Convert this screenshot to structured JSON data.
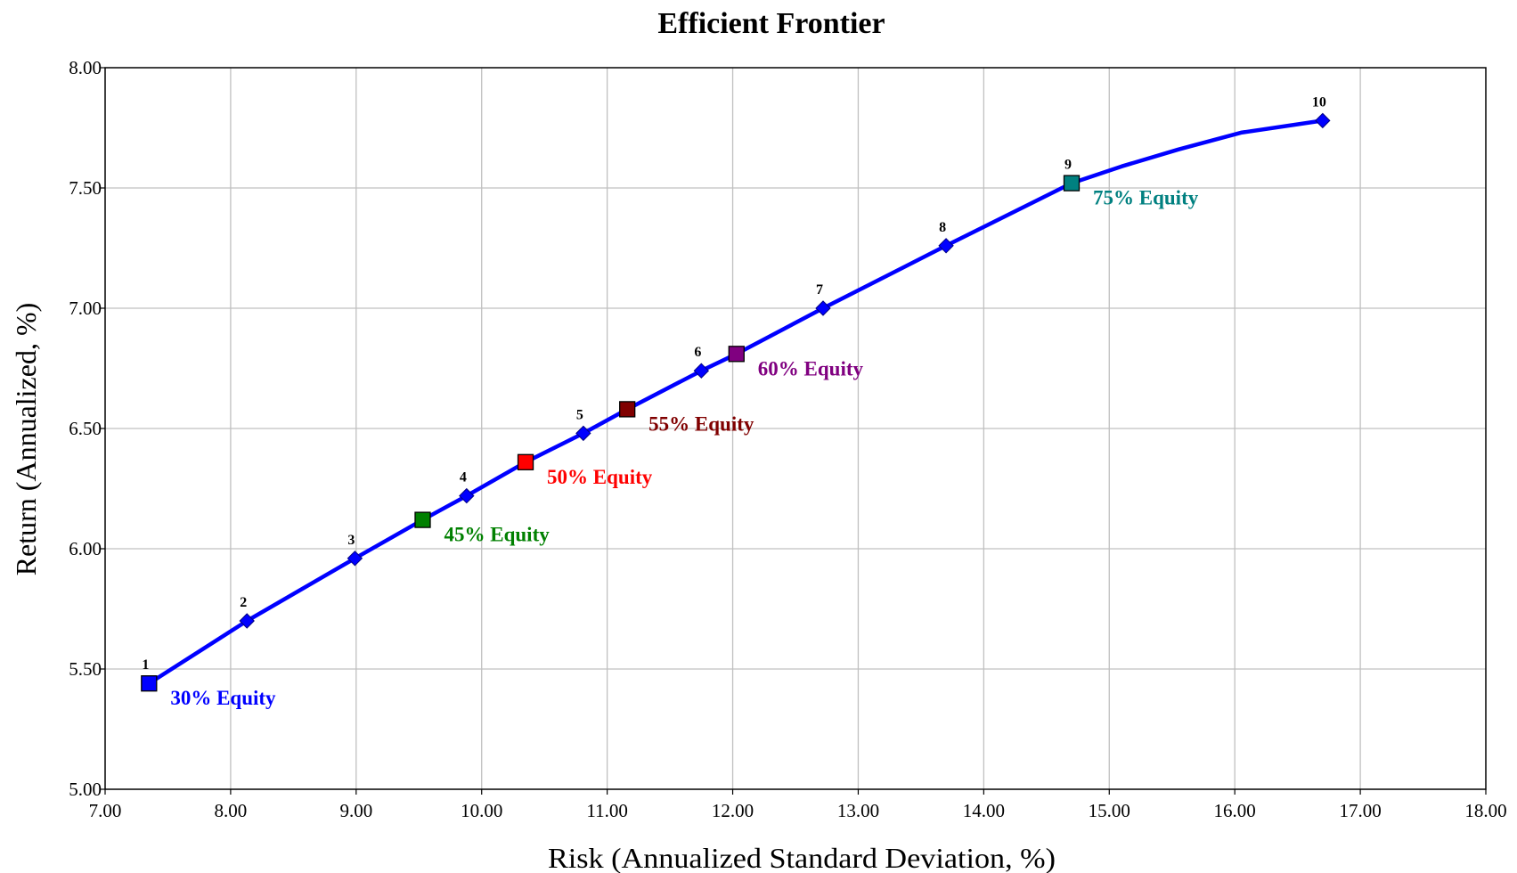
{
  "chart_data": {
    "type": "line",
    "title": "Efficient Frontier",
    "xlabel": "Risk (Annualized Standard Deviation, %)",
    "ylabel": "Return (Annualized, %)",
    "xlim": [
      7.0,
      18.0
    ],
    "ylim": [
      5.0,
      8.0
    ],
    "x_ticks": [
      "7.00",
      "8.00",
      "9.00",
      "10.00",
      "11.00",
      "12.00",
      "13.00",
      "14.00",
      "15.00",
      "16.00",
      "17.00",
      "18.00"
    ],
    "y_ticks": [
      "5.00",
      "5.50",
      "6.00",
      "6.50",
      "7.00",
      "7.50",
      "8.00"
    ],
    "grid": true,
    "line_color": "#0000ff",
    "curve": [
      {
        "x": 7.35,
        "y": 5.44
      },
      {
        "x": 8.13,
        "y": 5.7
      },
      {
        "x": 8.99,
        "y": 5.96
      },
      {
        "x": 9.53,
        "y": 6.12
      },
      {
        "x": 9.88,
        "y": 6.22
      },
      {
        "x": 10.35,
        "y": 6.36
      },
      {
        "x": 10.81,
        "y": 6.48
      },
      {
        "x": 11.16,
        "y": 6.58
      },
      {
        "x": 11.75,
        "y": 6.74
      },
      {
        "x": 12.03,
        "y": 6.81
      },
      {
        "x": 12.72,
        "y": 7.0
      },
      {
        "x": 13.7,
        "y": 7.26
      },
      {
        "x": 14.7,
        "y": 7.52
      },
      {
        "x": 15.1,
        "y": 7.59
      },
      {
        "x": 15.55,
        "y": 7.66
      },
      {
        "x": 16.05,
        "y": 7.73
      },
      {
        "x": 16.7,
        "y": 7.78
      }
    ],
    "frontier_points": [
      {
        "label": "1",
        "x": 7.35,
        "y": 5.44
      },
      {
        "label": "2",
        "x": 8.13,
        "y": 5.7
      },
      {
        "label": "3",
        "x": 8.99,
        "y": 5.96
      },
      {
        "label": "4",
        "x": 9.88,
        "y": 6.22
      },
      {
        "label": "5",
        "x": 10.81,
        "y": 6.48
      },
      {
        "label": "6",
        "x": 11.75,
        "y": 6.74
      },
      {
        "label": "7",
        "x": 12.72,
        "y": 7.0
      },
      {
        "label": "8",
        "x": 13.7,
        "y": 7.26
      },
      {
        "label": "9",
        "x": 14.7,
        "y": 7.52
      },
      {
        "label": "10",
        "x": 16.7,
        "y": 7.78
      }
    ],
    "portfolios": [
      {
        "name": "30% Equity",
        "x": 7.35,
        "y": 5.44,
        "color": "#0000ff"
      },
      {
        "name": "45% Equity",
        "x": 9.53,
        "y": 6.12,
        "color": "#008000"
      },
      {
        "name": "50% Equity",
        "x": 10.35,
        "y": 6.36,
        "color": "#ff0000"
      },
      {
        "name": "55% Equity",
        "x": 11.16,
        "y": 6.58,
        "color": "#800000"
      },
      {
        "name": "60% Equity",
        "x": 12.03,
        "y": 6.81,
        "color": "#800080"
      },
      {
        "name": "75% Equity",
        "x": 14.7,
        "y": 7.52,
        "color": "#008080"
      }
    ]
  }
}
